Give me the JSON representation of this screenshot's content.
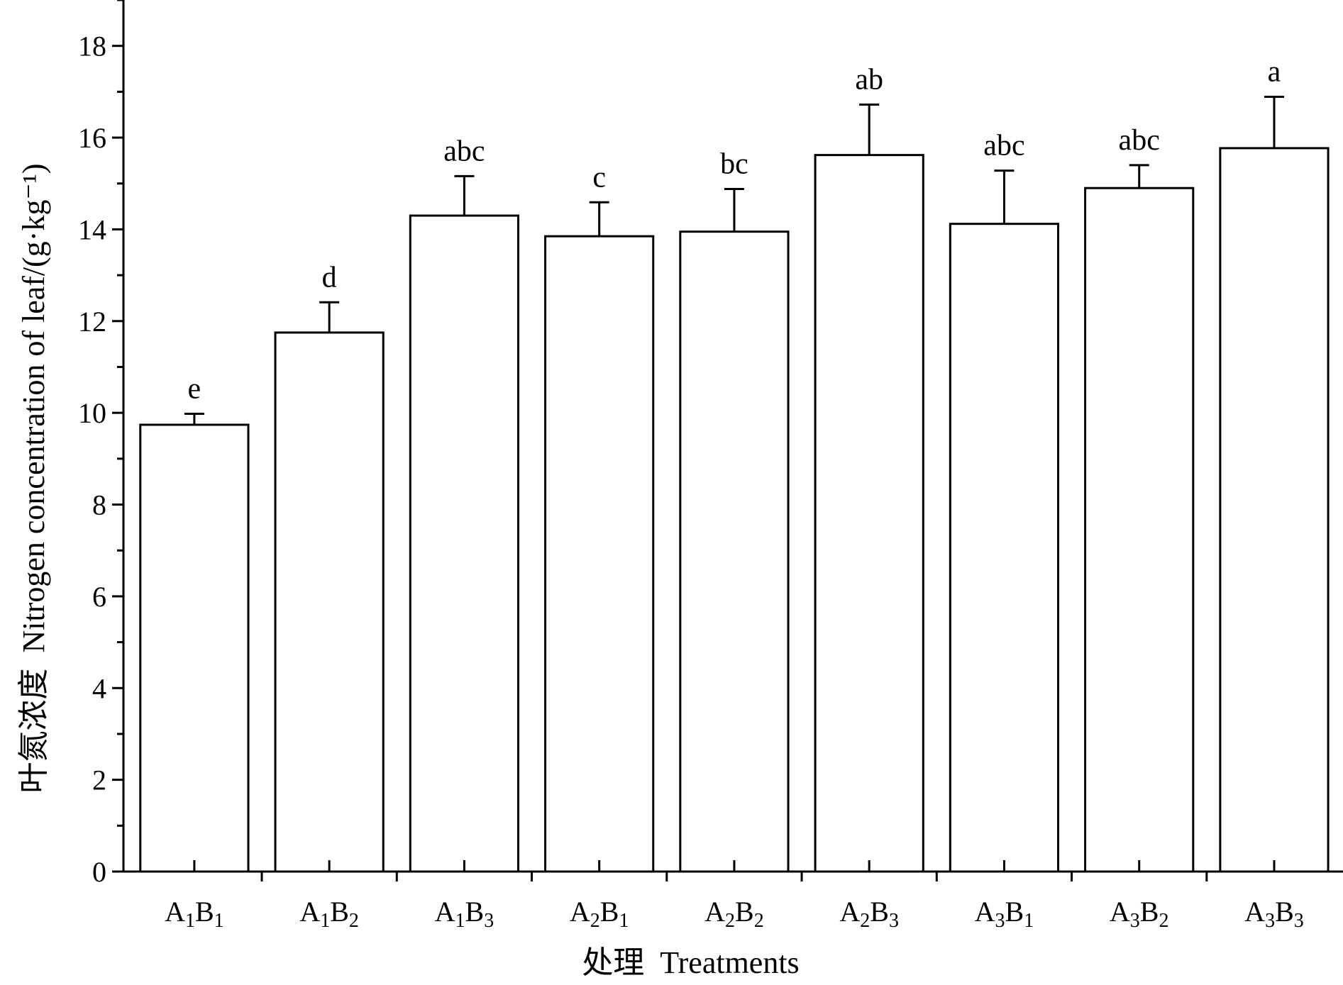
{
  "chart_data": {
    "type": "bar",
    "xlabel": "处理  Treatments",
    "ylabel": "叶氮浓度  Nitrogen concentration of leaf/(g·kg⁻¹)",
    "ylim": [
      0,
      19
    ],
    "yticks": [
      "0",
      "2",
      "4",
      "6",
      "8",
      "10",
      "12",
      "14",
      "16",
      "18"
    ],
    "categories": [
      {
        "a": "A",
        "asub": "1",
        "b": "B",
        "bsub": "1"
      },
      {
        "a": "A",
        "asub": "1",
        "b": "B",
        "bsub": "2"
      },
      {
        "a": "A",
        "asub": "1",
        "b": "B",
        "bsub": "3"
      },
      {
        "a": "A",
        "asub": "2",
        "b": "B",
        "bsub": "1"
      },
      {
        "a": "A",
        "asub": "2",
        "b": "B",
        "bsub": "2"
      },
      {
        "a": "A",
        "asub": "2",
        "b": "B",
        "bsub": "3"
      },
      {
        "a": "A",
        "asub": "3",
        "b": "B",
        "bsub": "1"
      },
      {
        "a": "A",
        "asub": "3",
        "b": "B",
        "bsub": "2"
      },
      {
        "a": "A",
        "asub": "3",
        "b": "B",
        "bsub": "3"
      }
    ],
    "values": [
      9.74,
      11.75,
      14.3,
      13.85,
      13.95,
      15.62,
      14.12,
      14.9,
      15.77
    ],
    "errors": [
      0.24,
      0.66,
      0.86,
      0.74,
      0.93,
      1.1,
      1.16,
      0.5,
      1.12
    ],
    "significance": [
      "e",
      "d",
      "abc",
      "c",
      "bc",
      "ab",
      "abc",
      "abc",
      "a"
    ],
    "grid": false,
    "legend": "none"
  }
}
